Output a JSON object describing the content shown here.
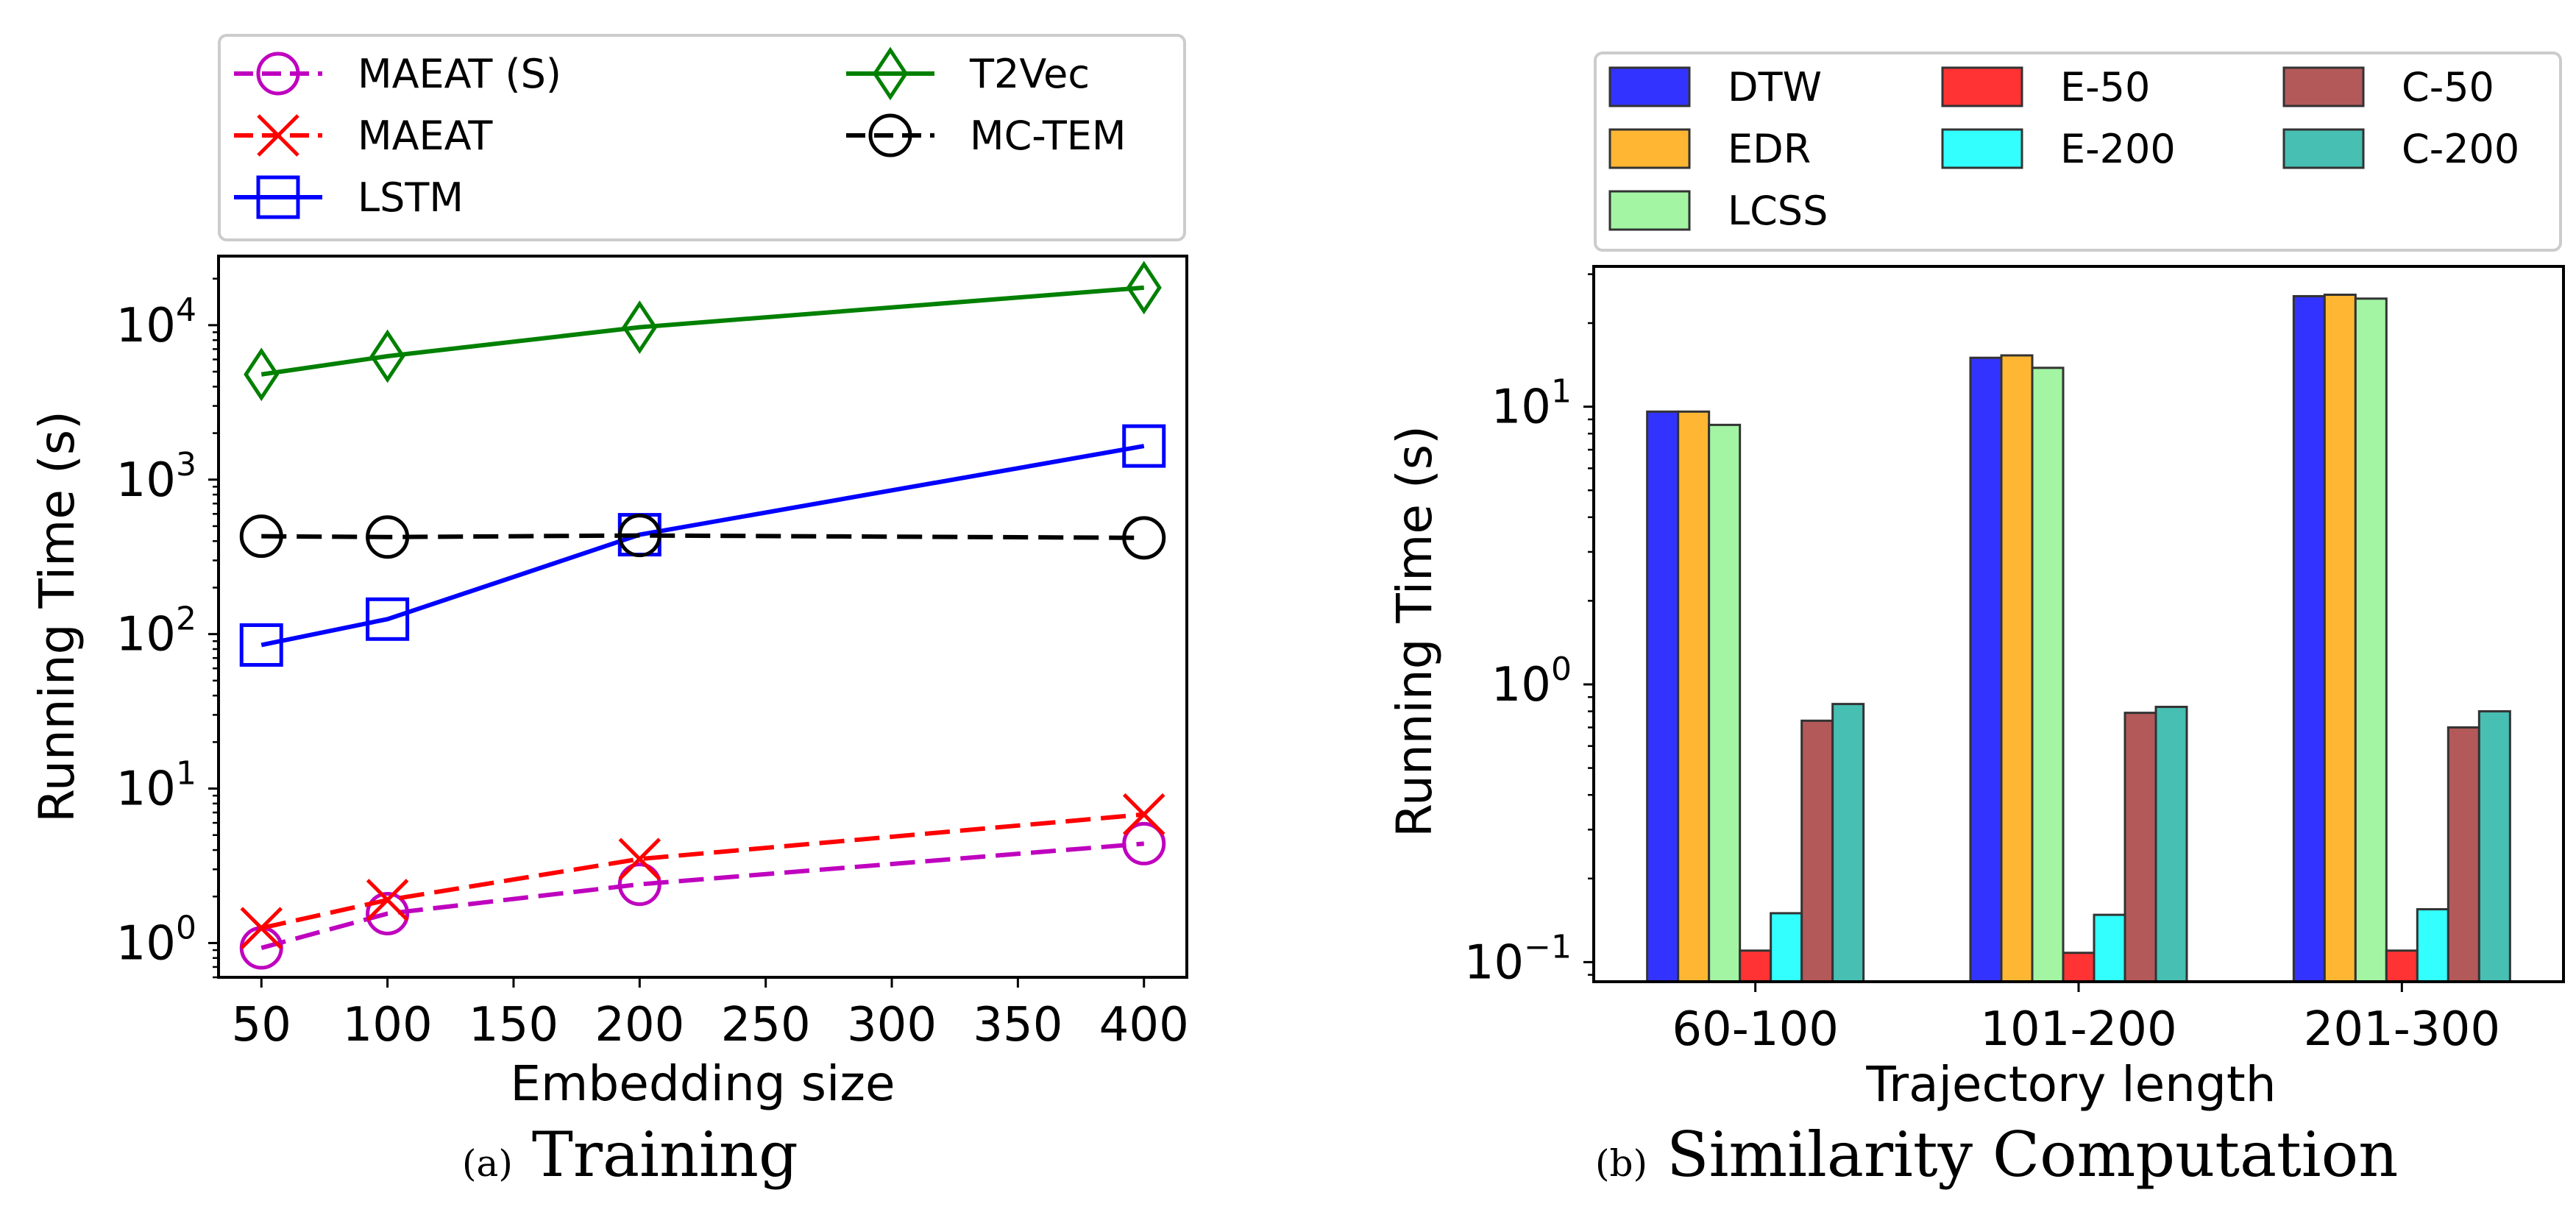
{
  "chart_data": [
    {
      "type": "line",
      "subfigure_label": "(a)",
      "caption": "Training",
      "xlabel": "Embedding size",
      "ylabel": "Running Time (s)",
      "yscale": "log",
      "xlim": [
        33,
        417
      ],
      "ylim": [
        0.6,
        28000
      ],
      "x_ticks": [
        "50",
        "100",
        "150",
        "200",
        "250",
        "300",
        "350",
        "400"
      ],
      "x_tick_values": [
        50,
        100,
        150,
        200,
        250,
        300,
        350,
        400
      ],
      "y_ticks": [
        {
          "base": "10",
          "exp": "0",
          "value": 1
        },
        {
          "base": "10",
          "exp": "1",
          "value": 10
        },
        {
          "base": "10",
          "exp": "2",
          "value": 100
        },
        {
          "base": "10",
          "exp": "3",
          "value": 1000
        },
        {
          "base": "10",
          "exp": "4",
          "value": 10000
        }
      ],
      "legend_position": "above",
      "x": [
        50,
        100,
        200,
        400
      ],
      "series": [
        {
          "name": "MAEAT (S)",
          "color": "#bf00bf",
          "dash": "dashed",
          "marker": "circle",
          "values": [
            0.93,
            1.55,
            2.4,
            4.4
          ]
        },
        {
          "name": "MAEAT",
          "color": "#ff0000",
          "dash": "dashed",
          "marker": "x",
          "values": [
            1.25,
            1.9,
            3.5,
            6.8
          ]
        },
        {
          "name": "LSTM",
          "color": "#0000ff",
          "dash": "solid",
          "marker": "square",
          "values": [
            85,
            125,
            440,
            1650
          ]
        },
        {
          "name": "T2Vec",
          "color": "#008000",
          "dash": "solid",
          "marker": "diamond",
          "values": [
            4800,
            6300,
            9700,
            17500
          ]
        },
        {
          "name": "MC-TEM",
          "color": "#000000",
          "dash": "dashed",
          "marker": "circle",
          "values": [
            430,
            425,
            435,
            420
          ]
        }
      ]
    },
    {
      "type": "bar",
      "subfigure_label": "(b)",
      "caption": "Similarity Computation",
      "xlabel": "Trajectory length",
      "ylabel": "Running Time (s)",
      "yscale": "log",
      "ylim": [
        0.085,
        32
      ],
      "y_ticks": [
        {
          "base": "10",
          "exp": "−1",
          "value": 0.1
        },
        {
          "base": "10",
          "exp": "0",
          "value": 1
        },
        {
          "base": "10",
          "exp": "1",
          "value": 10
        }
      ],
      "legend_position": "above",
      "categories": [
        "60-100",
        "101-200",
        "201-300"
      ],
      "series": [
        {
          "name": "DTW",
          "color": "#3333ff",
          "values": [
            9.6,
            15.0,
            25.0
          ]
        },
        {
          "name": "EDR",
          "color": "#ffb733",
          "values": [
            9.6,
            15.3,
            25.3
          ]
        },
        {
          "name": "LCSS",
          "color": "#a3f5a3",
          "values": [
            8.6,
            13.8,
            24.5
          ]
        },
        {
          "name": "E-50",
          "color": "#ff3333",
          "values": [
            0.11,
            0.108,
            0.11
          ]
        },
        {
          "name": "E-200",
          "color": "#33ffff",
          "values": [
            0.15,
            0.148,
            0.155
          ]
        },
        {
          "name": "C-50",
          "color": "#b35959",
          "values": [
            0.74,
            0.79,
            0.7
          ]
        },
        {
          "name": "C-200",
          "color": "#47bfb3",
          "values": [
            0.85,
            0.83,
            0.8
          ]
        }
      ]
    }
  ]
}
